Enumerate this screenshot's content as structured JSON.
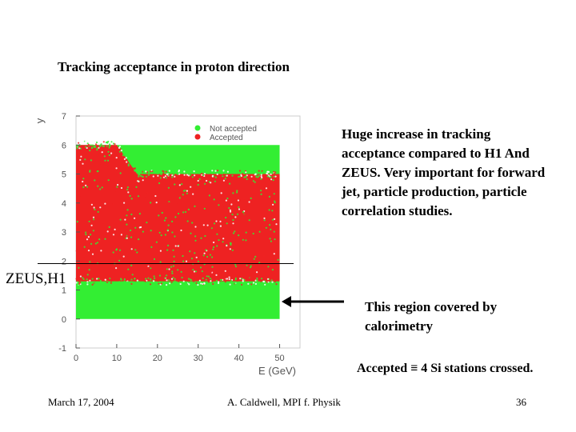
{
  "slide": {
    "title": "Tracking acceptance in proton direction",
    "note_main": "Huge increase in tracking acceptance compared to H1 And ZEUS.  Very important for forward jet, particle production, particle correlation studies.",
    "zeus_label": "ZEUS,H1",
    "note_region": "This region covered by calorimetry",
    "note_accepted": "Accepted ≡ 4 Si stations crossed.",
    "footer": {
      "date": "March 17, 2004",
      "author": "A. Caldwell, MPI f. Physik",
      "page": "36"
    }
  },
  "colors": {
    "not_accepted": "#33ee33",
    "accepted": "#ee2222",
    "arrow": "#000000",
    "axis_text": "#555555"
  },
  "chart_data": {
    "type": "scatter",
    "xlabel": "E (GeV)",
    "ylabel": "y",
    "xlim": [
      0,
      55
    ],
    "ylim": [
      -1,
      7
    ],
    "x_ticks": [
      0,
      10,
      20,
      30,
      40,
      50
    ],
    "y_ticks": [
      -1,
      0,
      1,
      2,
      3,
      4,
      5,
      6,
      7
    ],
    "legend_position": "top-right",
    "series": [
      {
        "name": "Not accepted",
        "color": "#33ee33",
        "x_range": [
          0,
          50
        ],
        "y_range": [
          0,
          6
        ]
      },
      {
        "name": "Accepted",
        "color": "#ee2222",
        "region": {
          "x_range": [
            0,
            50
          ],
          "y_lower": 1.3,
          "y_upper_low_E": 6.0,
          "y_upper_high_E": 5.0,
          "transition_E": [
            10,
            15
          ]
        }
      }
    ],
    "annotation": {
      "text": "ZEUS,H1",
      "y": 1.9
    }
  }
}
